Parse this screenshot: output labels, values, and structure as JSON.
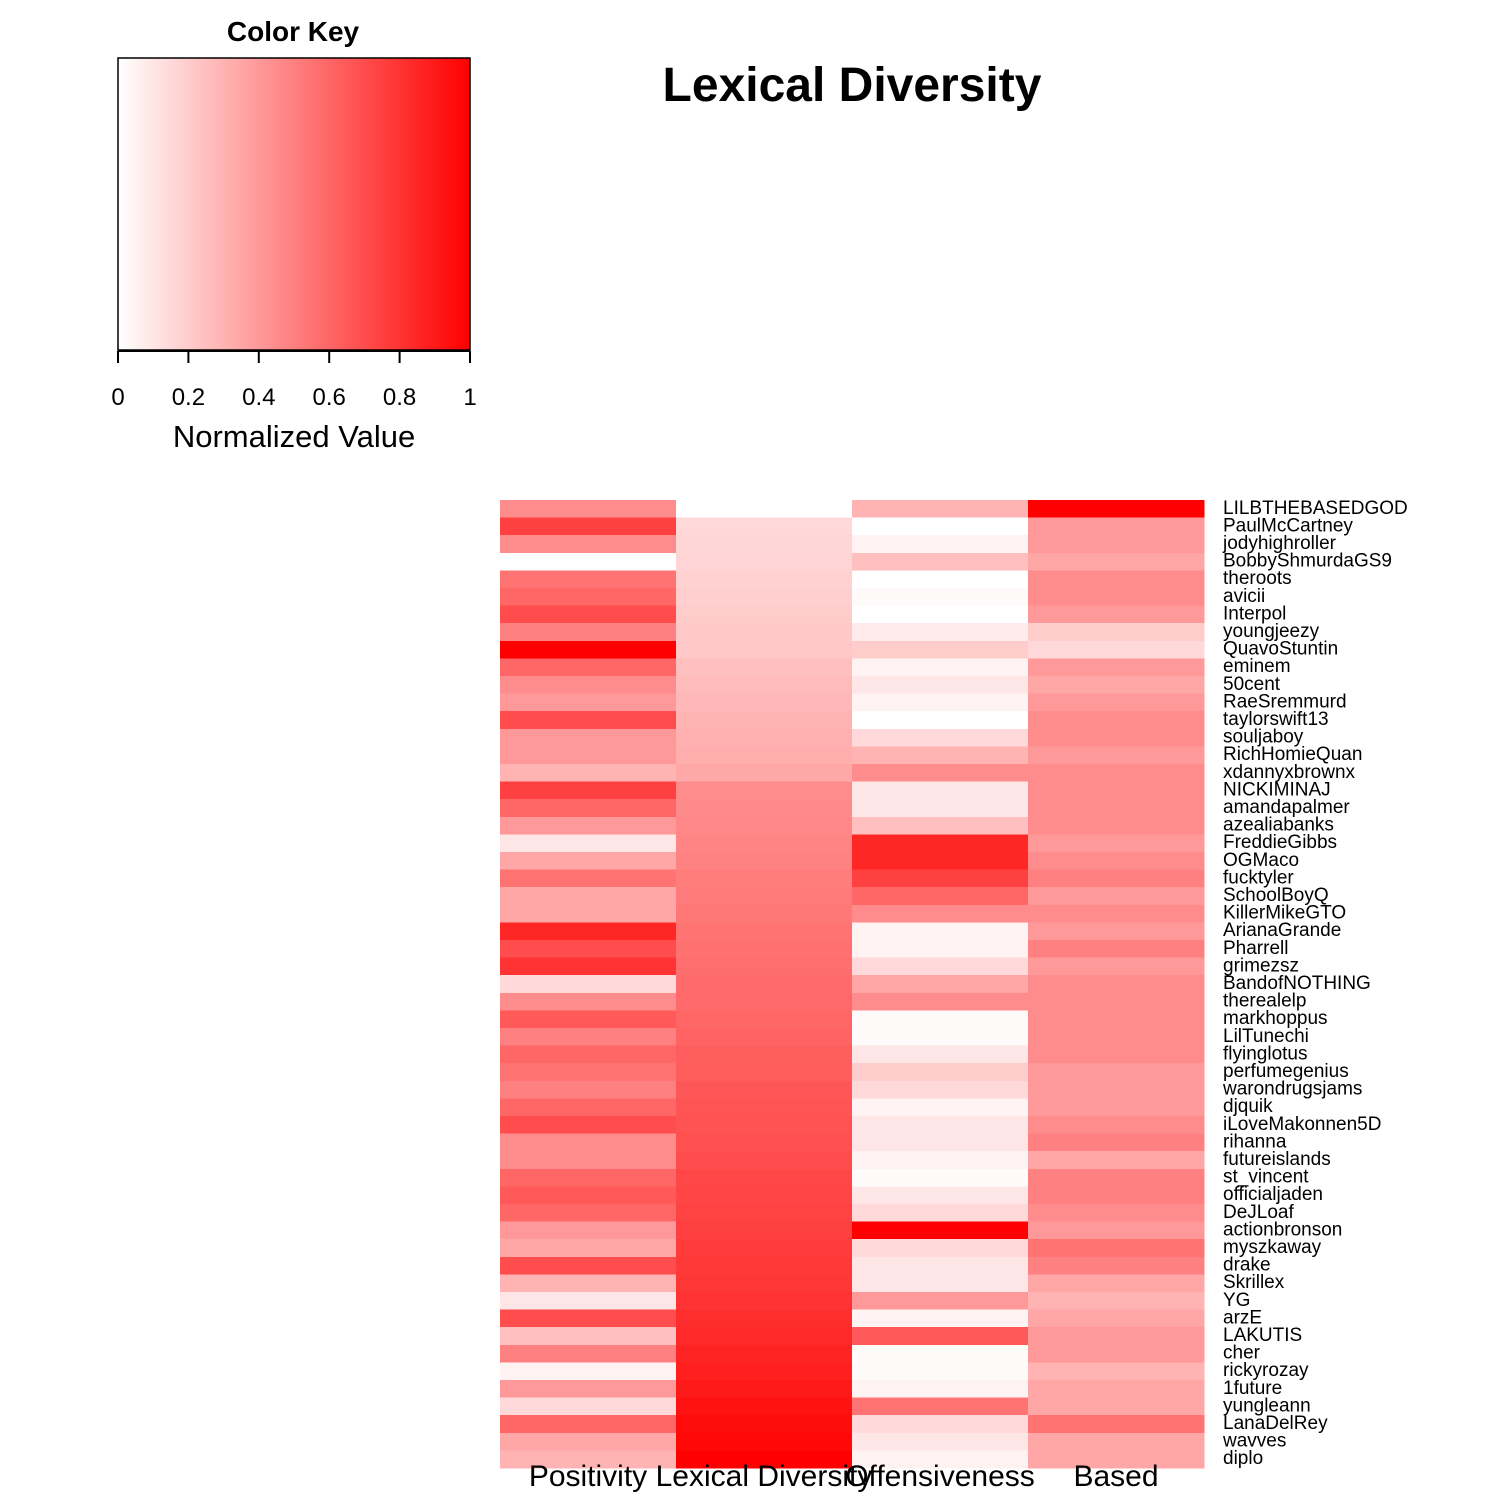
{
  "colors": {
    "low": "#ffffff",
    "high": "#ff0000",
    "text": "#000000"
  },
  "chart_data": {
    "type": "heatmap",
    "title": "Lexical Diversity",
    "color_key": {
      "title": "Color Key",
      "xlabel": "Normalized Value",
      "ticks": [
        "0",
        "0.2",
        "0.4",
        "0.6",
        "0.8",
        "1"
      ],
      "range": [
        0,
        1
      ]
    },
    "columns": [
      "Positivity",
      "Lexical Diversity",
      "Offensiveness",
      "Based"
    ],
    "rows": [
      "LILBTHEBASEDGOD",
      "PaulMcCartney",
      "jodyhighroller",
      "BobbyShmurdaGS9",
      "theroots",
      "avicii",
      "Interpol",
      "youngjeezy",
      "QuavoStuntin",
      "eminem",
      "50cent",
      "RaeSremmurd",
      "taylorswift13",
      "souljaboy",
      "RichHomieQuan",
      "xdannyxbrownx",
      "NICKIMINAJ",
      "amandapalmer",
      "azealiabanks",
      "FreddieGibbs",
      "OGMaco",
      "fucktyler",
      "SchoolBoyQ",
      "KillerMikeGTO",
      "ArianaGrande",
      "Pharrell",
      "grimezsz",
      "BandofNOTHING",
      "therealelp",
      "markhoppus",
      "LilTunechi",
      "flyinglotus",
      "perfumegenius",
      "warondrugsjams",
      "djquik",
      "iLoveMakonnen5D",
      "rihanna",
      "futureislands",
      "st_vincent",
      "officialjaden",
      "DeJLoaf",
      "actionbronson",
      "myszkaway",
      "drake",
      "Skrillex",
      "YG",
      "arzE",
      "LAKUTIS",
      "cher",
      "rickyrozay",
      "1future",
      "yungleann",
      "LanaDelRey",
      "wavves",
      "diplo"
    ],
    "values": [
      [
        0.45,
        0.0,
        0.3,
        1.0
      ],
      [
        0.75,
        0.15,
        0.0,
        0.4
      ],
      [
        0.45,
        0.16,
        0.05,
        0.4
      ],
      [
        0.0,
        0.17,
        0.25,
        0.35
      ],
      [
        0.55,
        0.18,
        0.0,
        0.45
      ],
      [
        0.6,
        0.19,
        0.02,
        0.45
      ],
      [
        0.7,
        0.2,
        0.0,
        0.4
      ],
      [
        0.5,
        0.21,
        0.08,
        0.2
      ],
      [
        1.0,
        0.22,
        0.2,
        0.15
      ],
      [
        0.6,
        0.25,
        0.05,
        0.4
      ],
      [
        0.45,
        0.27,
        0.1,
        0.35
      ],
      [
        0.4,
        0.28,
        0.05,
        0.4
      ],
      [
        0.7,
        0.3,
        0.0,
        0.45
      ],
      [
        0.4,
        0.31,
        0.15,
        0.45
      ],
      [
        0.4,
        0.32,
        0.3,
        0.4
      ],
      [
        0.3,
        0.34,
        0.45,
        0.45
      ],
      [
        0.75,
        0.45,
        0.1,
        0.45
      ],
      [
        0.6,
        0.46,
        0.1,
        0.45
      ],
      [
        0.4,
        0.47,
        0.25,
        0.45
      ],
      [
        0.1,
        0.48,
        0.85,
        0.4
      ],
      [
        0.35,
        0.49,
        0.85,
        0.45
      ],
      [
        0.55,
        0.51,
        0.75,
        0.5
      ],
      [
        0.35,
        0.52,
        0.6,
        0.4
      ],
      [
        0.35,
        0.53,
        0.45,
        0.45
      ],
      [
        0.85,
        0.55,
        0.05,
        0.4
      ],
      [
        0.7,
        0.56,
        0.05,
        0.5
      ],
      [
        0.8,
        0.57,
        0.15,
        0.4
      ],
      [
        0.15,
        0.58,
        0.35,
        0.45
      ],
      [
        0.45,
        0.59,
        0.45,
        0.45
      ],
      [
        0.65,
        0.6,
        0.02,
        0.45
      ],
      [
        0.5,
        0.61,
        0.02,
        0.45
      ],
      [
        0.6,
        0.63,
        0.1,
        0.45
      ],
      [
        0.55,
        0.64,
        0.2,
        0.4
      ],
      [
        0.5,
        0.66,
        0.15,
        0.4
      ],
      [
        0.6,
        0.67,
        0.05,
        0.4
      ],
      [
        0.7,
        0.68,
        0.1,
        0.45
      ],
      [
        0.45,
        0.69,
        0.1,
        0.5
      ],
      [
        0.45,
        0.7,
        0.05,
        0.35
      ],
      [
        0.6,
        0.72,
        0.02,
        0.5
      ],
      [
        0.65,
        0.73,
        0.1,
        0.5
      ],
      [
        0.6,
        0.74,
        0.15,
        0.45
      ],
      [
        0.4,
        0.75,
        1.0,
        0.4
      ],
      [
        0.35,
        0.77,
        0.15,
        0.55
      ],
      [
        0.7,
        0.78,
        0.1,
        0.5
      ],
      [
        0.3,
        0.79,
        0.1,
        0.35
      ],
      [
        0.1,
        0.8,
        0.4,
        0.3
      ],
      [
        0.7,
        0.82,
        0.05,
        0.35
      ],
      [
        0.25,
        0.84,
        0.65,
        0.4
      ],
      [
        0.5,
        0.86,
        0.02,
        0.4
      ],
      [
        0.05,
        0.88,
        0.02,
        0.3
      ],
      [
        0.4,
        0.9,
        0.05,
        0.35
      ],
      [
        0.15,
        0.93,
        0.55,
        0.35
      ],
      [
        0.6,
        0.95,
        0.15,
        0.55
      ],
      [
        0.35,
        0.97,
        0.1,
        0.35
      ],
      [
        0.3,
        1.0,
        0.05,
        0.35
      ]
    ]
  }
}
